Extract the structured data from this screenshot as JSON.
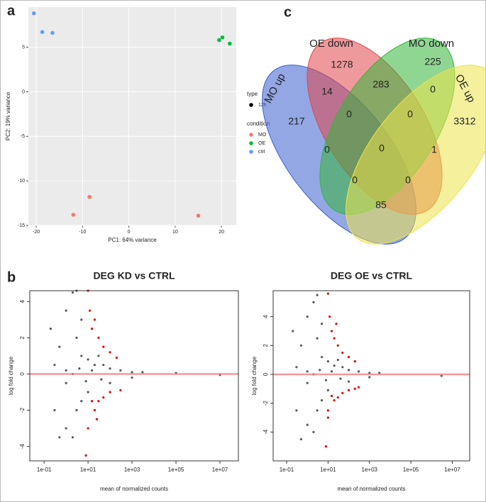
{
  "panels": [
    "a",
    "b",
    "c"
  ],
  "chart_data": [
    {
      "type": "scatter",
      "xlabel": "PC1: 64% variance",
      "ylabel": "PC2: 19% variance",
      "xlim": [
        -21.7,
        23.2
      ],
      "ylim": [
        -15,
        9.5
      ],
      "xticks": [
        -20,
        -10,
        0,
        10,
        20
      ],
      "yticks": [
        5,
        0,
        -5,
        -10,
        -15
      ],
      "grid": true,
      "legend_title": "condition",
      "shape_legend": {
        "title": "type",
        "labels": [
          "12h"
        ]
      },
      "series": [
        {
          "name": "MO",
          "color": "#f8766d",
          "x": [
            -12,
            -8.5,
            15
          ],
          "values": [
            -13.8,
            -11.8,
            -13.9
          ]
        },
        {
          "name": "OE",
          "color": "#00ba38",
          "x": [
            19.5,
            20.2,
            21.8
          ],
          "values": [
            5.8,
            6.1,
            5.4
          ]
        },
        {
          "name": "ctrl",
          "color": "#619cff",
          "x": [
            -20.5,
            -18.7,
            -16.5
          ],
          "values": [
            8.8,
            6.7,
            6.6
          ]
        }
      ]
    },
    {
      "type": "venn",
      "sets": [
        {
          "name": "MO up",
          "color": "#3a5fcd"
        },
        {
          "name": "OE down",
          "color": "#e0454a"
        },
        {
          "name": "MO down",
          "color": "#35b53b"
        },
        {
          "name": "OE up",
          "color": "#ede34b"
        }
      ],
      "values": [
        1278,
        225,
        217,
        3312,
        14,
        283,
        0,
        0,
        0,
        0,
        0,
        1,
        0,
        0,
        85
      ]
    },
    {
      "type": "ma",
      "title": "DEG KD vs CTRL",
      "xlabel": "mean of normalized counts",
      "ylabel": "log fold change",
      "log_x": true,
      "xlim": [
        0.0224,
        69000000
      ],
      "ylim": [
        -4.8,
        4.6
      ],
      "xticks": [
        {
          "value": 0.1,
          "label": "1e-01"
        },
        {
          "value": 10,
          "label": "1e+01"
        },
        {
          "value": 1000,
          "label": "1e+03"
        },
        {
          "value": 100000,
          "label": "1e+05"
        },
        {
          "value": 10000000,
          "label": "1e+07"
        }
      ],
      "yticks": [
        4,
        2,
        0,
        -2,
        -4
      ],
      "hline": 0,
      "hline_color": "#f08080",
      "series": [
        {
          "color": "#555555",
          "x": [
            0.2,
            0.3,
            0.5,
            1,
            1,
            2,
            3,
            2,
            3,
            3,
            5,
            5,
            10,
            10,
            20,
            30,
            50,
            100,
            100,
            300,
            1000,
            1000,
            3000,
            100000,
            10000000,
            0.5,
            1,
            1,
            5,
            0.3,
            2,
            4,
            8,
            15,
            40
          ],
          "values": [
            2.5,
            -2,
            1.5,
            3.5,
            -3,
            4.5,
            4.6,
            -3.5,
            2,
            -2,
            1,
            -1.5,
            0.8,
            -1,
            0.5,
            1,
            0.5,
            0.3,
            -0.5,
            0.2,
            0.1,
            -0.2,
            0.1,
            0.05,
            -0.05,
            -3.5,
            0.2,
            -0.5,
            3,
            0.5,
            0,
            0.3,
            -0.4,
            0.2,
            -0.3
          ]
        },
        {
          "color": "#dd0000",
          "x": [
            10,
            15,
            20,
            30,
            50,
            100,
            200,
            15,
            20,
            30,
            50,
            100,
            10,
            8,
            300,
            12,
            25
          ],
          "values": [
            4.6,
            2.5,
            3,
            2,
            1.5,
            1.2,
            0.9,
            -1.5,
            -2,
            -1.5,
            -1.3,
            -1,
            -3,
            -4.5,
            -0.9,
            3.5,
            -2.5
          ]
        }
      ]
    },
    {
      "type": "ma",
      "title": "DEG OE vs CTRL",
      "xlabel": "mean of normalized counts",
      "ylabel": "log fold change",
      "log_x": true,
      "xlim": [
        0.0224,
        69000000
      ],
      "ylim": [
        -6,
        5.8
      ],
      "xticks": [
        {
          "value": 0.1,
          "label": "1e-01"
        },
        {
          "value": 10,
          "label": "1e+01"
        },
        {
          "value": 1000,
          "label": "1e+03"
        },
        {
          "value": 100000,
          "label": "1e+05"
        },
        {
          "value": 10000000,
          "label": "1e+07"
        }
      ],
      "yticks": [
        4,
        2,
        0,
        -2,
        -4
      ],
      "hline": 0,
      "hline_color": "#f08080",
      "series": [
        {
          "color": "#555555",
          "x": [
            0.2,
            0.3,
            0.5,
            1,
            1,
            2,
            3,
            2,
            3,
            3,
            5,
            5,
            10,
            10,
            20,
            30,
            50,
            100,
            100,
            300,
            1000,
            1000,
            3000,
            3000000,
            0.5,
            1,
            1,
            5,
            0.3,
            2,
            4,
            8,
            15,
            40
          ],
          "values": [
            3,
            -2.5,
            2,
            4,
            -3.5,
            5,
            5.5,
            -4,
            2.5,
            -2.5,
            1.2,
            -1.8,
            0.9,
            -1.1,
            0.6,
            1,
            0.5,
            0.3,
            -0.5,
            0.2,
            0.1,
            -0.2,
            0.1,
            -0.1,
            -4.5,
            0.2,
            -0.6,
            3.5,
            0.5,
            0,
            0.3,
            -0.4,
            0.2,
            -0.3
          ]
        },
        {
          "color": "#dd0000",
          "x": [
            10,
            12,
            15,
            20,
            30,
            50,
            100,
            200,
            15,
            20,
            30,
            50,
            100,
            200,
            10,
            8,
            300,
            25,
            10
          ],
          "values": [
            5.6,
            4,
            3,
            2.5,
            2,
            1.5,
            1.2,
            0.9,
            -1.5,
            -1.8,
            -1.6,
            -1.3,
            -1.1,
            -1,
            -3,
            -5,
            -0.9,
            3.5,
            -2.5
          ]
        }
      ]
    }
  ]
}
